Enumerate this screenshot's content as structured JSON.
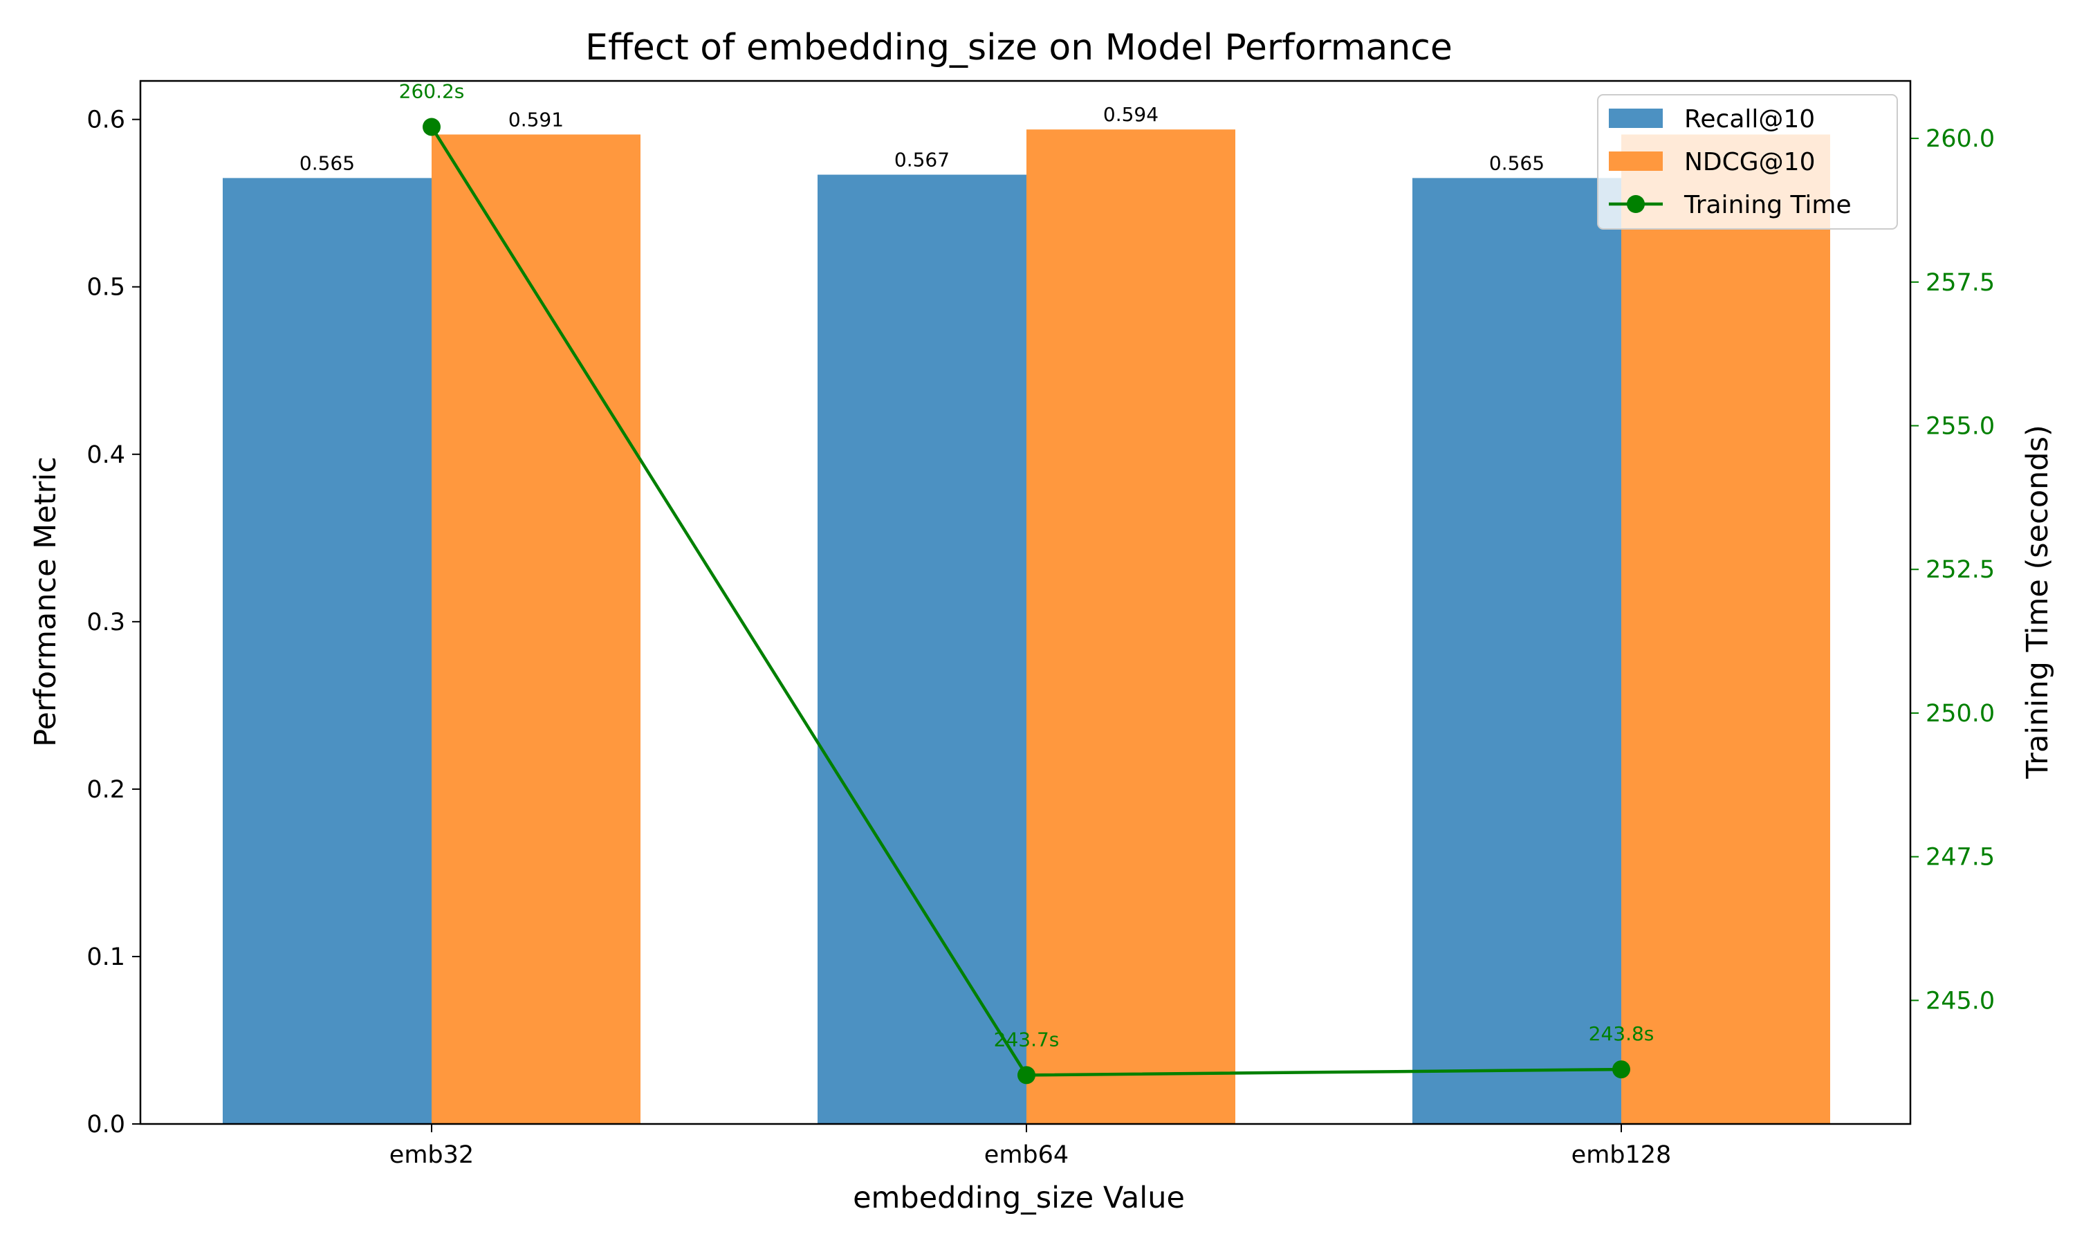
{
  "chart_data": {
    "type": "bar",
    "title": "Effect of embedding_size on Model Performance",
    "xlabel": "embedding_size Value",
    "ylabel": "Performance Metric",
    "y2label": "Training Time (seconds)",
    "categories": [
      "emb32",
      "emb64",
      "emb128"
    ],
    "series": [
      {
        "name": "Recall@10",
        "kind": "bar",
        "axis": "left",
        "color": "#4c91c2",
        "values": [
          0.565,
          0.567,
          0.565
        ],
        "labels": [
          "0.565",
          "0.567",
          "0.565"
        ]
      },
      {
        "name": "NDCG@10",
        "kind": "bar",
        "axis": "left",
        "color": "#ff983e",
        "values": [
          0.591,
          0.594,
          0.591
        ],
        "labels": [
          "0.591",
          "0.594",
          ""
        ]
      },
      {
        "name": "Training Time",
        "kind": "line",
        "axis": "right",
        "color": "#008000",
        "values": [
          260.2,
          243.7,
          243.8
        ],
        "labels": [
          "260.2s",
          "243.7s",
          "243.8s"
        ]
      }
    ],
    "ylim": [
      0,
      0.623
    ],
    "y2lim": [
      242.85,
      261.0
    ],
    "yticks": [
      "0.0",
      "0.1",
      "0.2",
      "0.3",
      "0.4",
      "0.5",
      "0.6"
    ],
    "y2ticks": [
      "245.0",
      "247.5",
      "250.0",
      "252.5",
      "255.0",
      "257.5",
      "260.0"
    ],
    "legend_position": "top-right",
    "grid": false
  }
}
